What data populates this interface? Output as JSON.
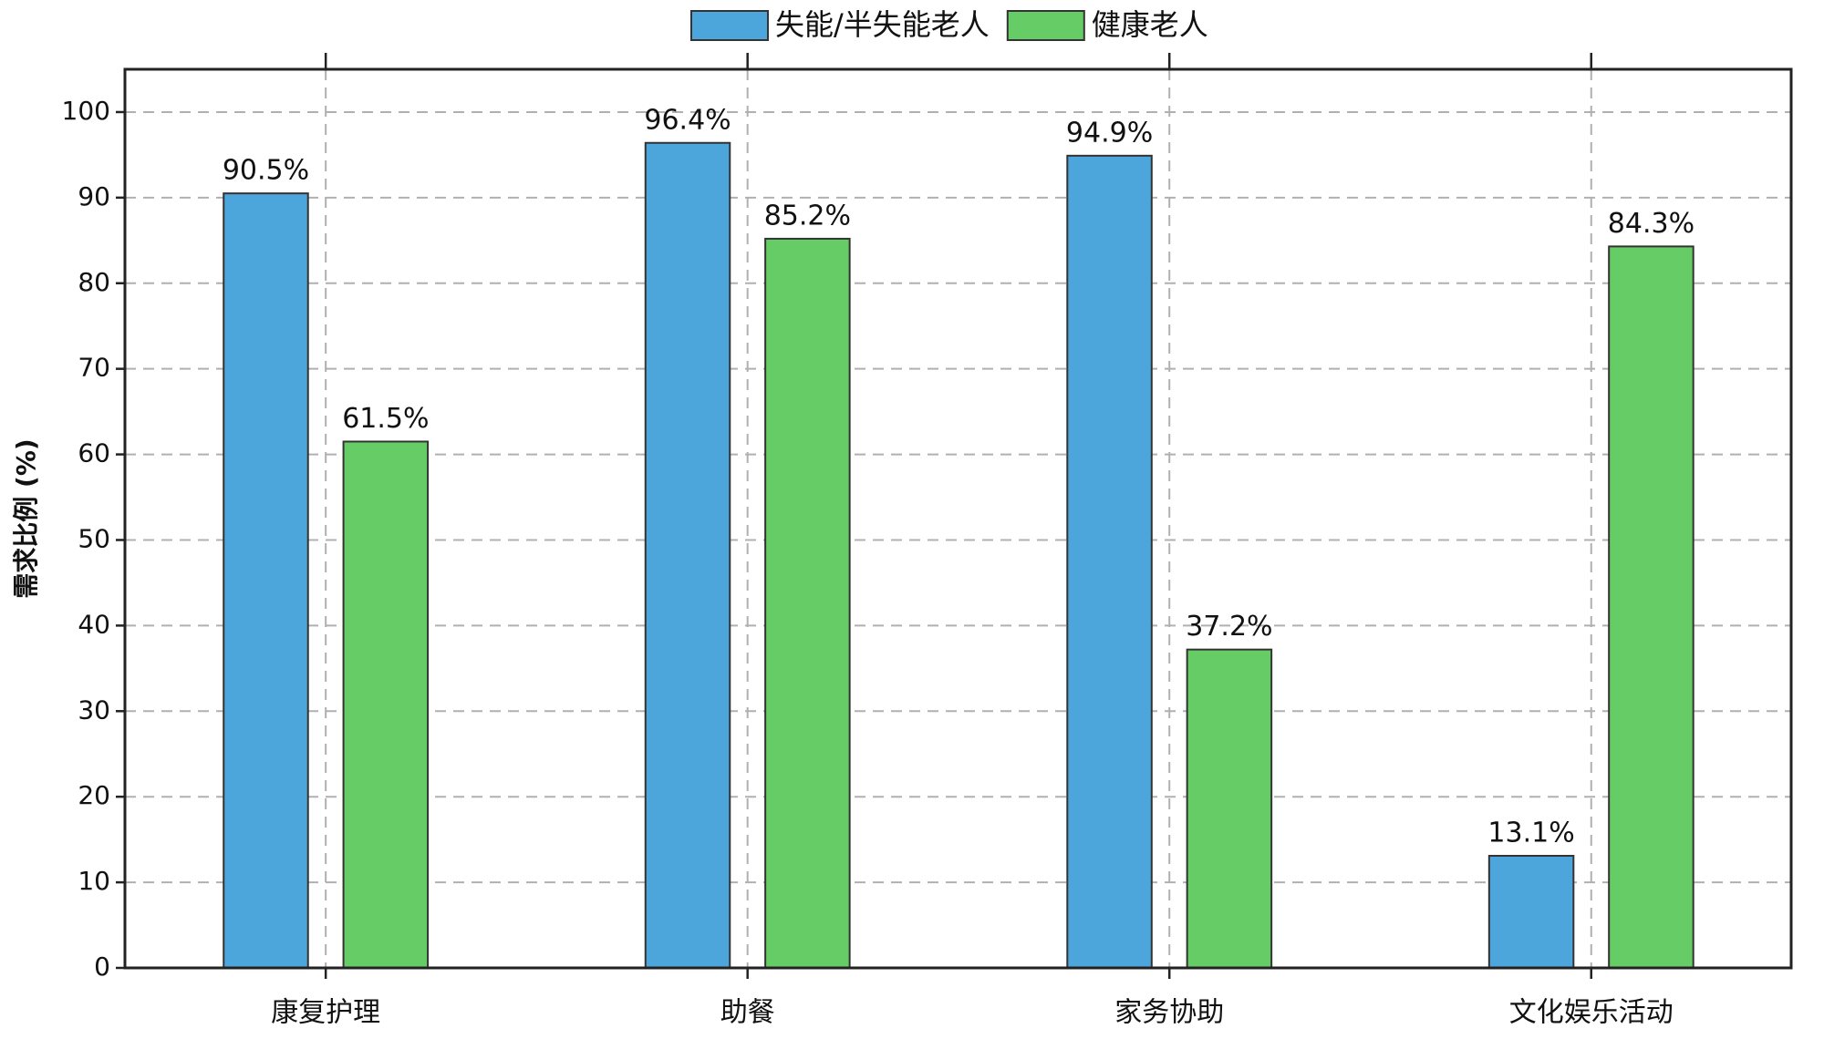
{
  "chart_data": {
    "type": "bar",
    "ylabel": "需求比例 (%)",
    "categories": [
      "康复护理",
      "助餐",
      "家务协助",
      "文化娱乐活动"
    ],
    "series": [
      {
        "name": "失能/半失能老人",
        "color": "#4da6db",
        "values": [
          90.5,
          96.4,
          94.9,
          13.1
        ],
        "value_labels": [
          "90.5%",
          "96.4%",
          "94.9%",
          "13.1%"
        ]
      },
      {
        "name": "健康老人",
        "color": "#66cc66",
        "values": [
          61.5,
          85.2,
          37.2,
          84.3
        ],
        "value_labels": [
          "61.5%",
          "85.2%",
          "37.2%",
          "84.3%"
        ]
      }
    ],
    "ylim": [
      0,
      105
    ],
    "yticks": [
      0,
      10,
      20,
      30,
      40,
      50,
      60,
      70,
      80,
      90,
      100
    ],
    "grid": true,
    "legend": "top"
  }
}
